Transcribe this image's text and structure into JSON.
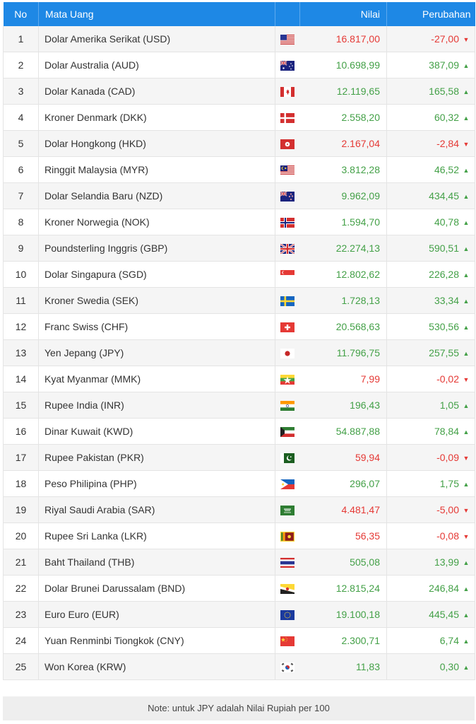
{
  "header": {
    "no": "No",
    "currency": "Mata Uang",
    "value": "Nilai",
    "change": "Perubahan"
  },
  "rows": [
    {
      "no": "1",
      "name": "Dolar Amerika Serikat (USD)",
      "flag": "us-flag-icon",
      "value": "16.817,00",
      "change": "-27,00",
      "dir": "down"
    },
    {
      "no": "2",
      "name": "Dolar Australia (AUD)",
      "flag": "au-flag-icon",
      "value": "10.698,99",
      "change": "387,09",
      "dir": "up"
    },
    {
      "no": "3",
      "name": "Dolar Kanada (CAD)",
      "flag": "ca-flag-icon",
      "value": "12.119,65",
      "change": "165,58",
      "dir": "up"
    },
    {
      "no": "4",
      "name": "Kroner Denmark (DKK)",
      "flag": "dk-flag-icon",
      "value": "2.558,20",
      "change": "60,32",
      "dir": "up"
    },
    {
      "no": "5",
      "name": "Dolar Hongkong (HKD)",
      "flag": "hk-flag-icon",
      "value": "2.167,04",
      "change": "-2,84",
      "dir": "down"
    },
    {
      "no": "6",
      "name": "Ringgit Malaysia (MYR)",
      "flag": "my-flag-icon",
      "value": "3.812,28",
      "change": "46,52",
      "dir": "up"
    },
    {
      "no": "7",
      "name": "Dolar Selandia Baru (NZD)",
      "flag": "nz-flag-icon",
      "value": "9.962,09",
      "change": "434,45",
      "dir": "up"
    },
    {
      "no": "8",
      "name": "Kroner Norwegia (NOK)",
      "flag": "no-flag-icon",
      "value": "1.594,70",
      "change": "40,78",
      "dir": "up"
    },
    {
      "no": "9",
      "name": "Poundsterling Inggris (GBP)",
      "flag": "gb-flag-icon",
      "value": "22.274,13",
      "change": "590,51",
      "dir": "up"
    },
    {
      "no": "10",
      "name": "Dolar Singapura (SGD)",
      "flag": "sg-flag-icon",
      "value": "12.802,62",
      "change": "226,28",
      "dir": "up"
    },
    {
      "no": "11",
      "name": "Kroner Swedia (SEK)",
      "flag": "se-flag-icon",
      "value": "1.728,13",
      "change": "33,34",
      "dir": "up"
    },
    {
      "no": "12",
      "name": "Franc Swiss (CHF)",
      "flag": "ch-flag-icon",
      "value": "20.568,63",
      "change": "530,56",
      "dir": "up"
    },
    {
      "no": "13",
      "name": "Yen Jepang (JPY)",
      "flag": "jp-flag-icon",
      "value": "11.796,75",
      "change": "257,55",
      "dir": "up"
    },
    {
      "no": "14",
      "name": "Kyat Myanmar (MMK)",
      "flag": "mm-flag-icon",
      "value": "7,99",
      "change": "-0,02",
      "dir": "down"
    },
    {
      "no": "15",
      "name": "Rupee India (INR)",
      "flag": "in-flag-icon",
      "value": "196,43",
      "change": "1,05",
      "dir": "up"
    },
    {
      "no": "16",
      "name": "Dinar Kuwait (KWD)",
      "flag": "kw-flag-icon",
      "value": "54.887,88",
      "change": "78,84",
      "dir": "up"
    },
    {
      "no": "17",
      "name": "Rupee Pakistan (PKR)",
      "flag": "pk-flag-icon",
      "value": "59,94",
      "change": "-0,09",
      "dir": "down"
    },
    {
      "no": "18",
      "name": "Peso Philipina (PHP)",
      "flag": "ph-flag-icon",
      "value": "296,07",
      "change": "1,75",
      "dir": "up"
    },
    {
      "no": "19",
      "name": "Riyal Saudi Arabia (SAR)",
      "flag": "sa-flag-icon",
      "value": "4.481,47",
      "change": "-5,00",
      "dir": "down"
    },
    {
      "no": "20",
      "name": "Rupee Sri Lanka (LKR)",
      "flag": "lk-flag-icon",
      "value": "56,35",
      "change": "-0,08",
      "dir": "down"
    },
    {
      "no": "21",
      "name": "Baht Thailand (THB)",
      "flag": "th-flag-icon",
      "value": "505,08",
      "change": "13,99",
      "dir": "up"
    },
    {
      "no": "22",
      "name": "Dolar Brunei Darussalam (BND)",
      "flag": "bn-flag-icon",
      "value": "12.815,24",
      "change": "246,84",
      "dir": "up"
    },
    {
      "no": "23",
      "name": "Euro Euro (EUR)",
      "flag": "eu-flag-icon",
      "value": "19.100,18",
      "change": "445,45",
      "dir": "up"
    },
    {
      "no": "24",
      "name": "Yuan Renminbi Tiongkok (CNY)",
      "flag": "cn-flag-icon",
      "value": "2.300,71",
      "change": "6,74",
      "dir": "up"
    },
    {
      "no": "25",
      "name": "Won Korea (KRW)",
      "flag": "kr-flag-icon",
      "value": "11,83",
      "change": "0,30",
      "dir": "up"
    }
  ],
  "note": "Note: untuk JPY adalah Nilai Rupiah per 100",
  "colors": {
    "header": "#1e88e5",
    "up": "#43a047",
    "down": "#e53935"
  }
}
